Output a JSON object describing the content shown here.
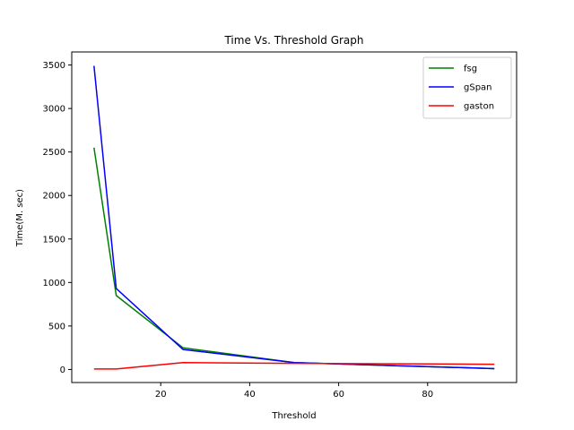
{
  "chart_data": {
    "type": "line",
    "title": "Time Vs. Threshold Graph",
    "xlabel": "Threshold",
    "ylabel": "Time(M. sec)",
    "xlim": [
      0,
      100
    ],
    "ylim": [
      -150,
      3650
    ],
    "xticks": [
      20,
      40,
      60,
      80
    ],
    "yticks": [
      0,
      500,
      1000,
      1500,
      2000,
      2500,
      3000,
      3500
    ],
    "grid": false,
    "legend_position": "top-right",
    "series": [
      {
        "name": "fsg",
        "color": "#008000",
        "x": [
          5,
          10,
          25,
          50,
          95
        ],
        "y": [
          2550,
          850,
          250,
          80,
          10
        ]
      },
      {
        "name": "gSpan",
        "color": "#0000ff",
        "x": [
          5,
          10,
          25,
          50,
          95
        ],
        "y": [
          3490,
          930,
          230,
          80,
          10
        ]
      },
      {
        "name": "gaston",
        "color": "#ff0000",
        "x": [
          5,
          10,
          25,
          50,
          95
        ],
        "y": [
          5,
          5,
          80,
          70,
          60
        ]
      }
    ]
  }
}
